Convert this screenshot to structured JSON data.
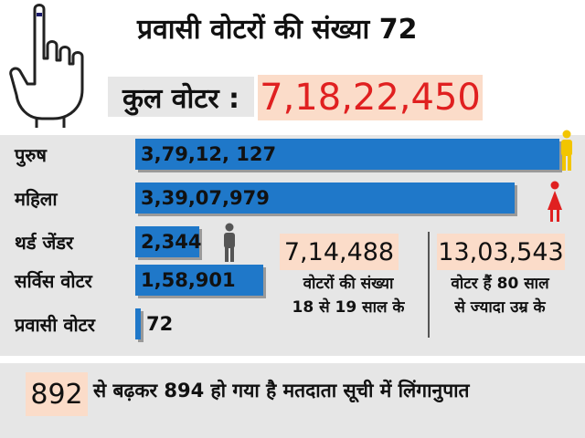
{
  "title": "प्रवासी वोटरों की संख्या 72",
  "total": {
    "label": "कुल वोटर :",
    "value": "7,18,22,450"
  },
  "chart_data": {
    "type": "bar",
    "orientation": "horizontal",
    "categories": [
      "पुरुष",
      "महिला",
      "थर्ड जेंडर",
      "सर्विस वोटर",
      "प्रवासी वोटर"
    ],
    "values": [
      37912127,
      33907979,
      2344,
      158901,
      72
    ],
    "value_labels": [
      "3,79,12, 127",
      "3,39,07,979",
      "2,344",
      "1,58,901",
      "72"
    ]
  },
  "info": [
    {
      "value": "7,14,488",
      "line1": "वोटरों की संख्या",
      "line2": "18 से 19 साल के"
    },
    {
      "value": "13,03,543",
      "line1": "वोटर हैं 80 साल",
      "line2": "से ज्यादा उम्र के"
    }
  ],
  "footer": {
    "number": "892",
    "text": "से बढ़कर 894 हो गया है मतदाता सूची में लिंगानुपात"
  },
  "colors": {
    "bar": "#1f78c9",
    "highlight_bg": "#fbdcc9",
    "total_value": "#e02020",
    "panel_bg": "#e6e6e6",
    "male_icon": "#f2c500",
    "female_icon": "#e02020",
    "third_gender_icon": "#555555"
  },
  "icons": [
    "voting-hand-icon",
    "male-icon",
    "female-icon",
    "third-gender-icon"
  ]
}
